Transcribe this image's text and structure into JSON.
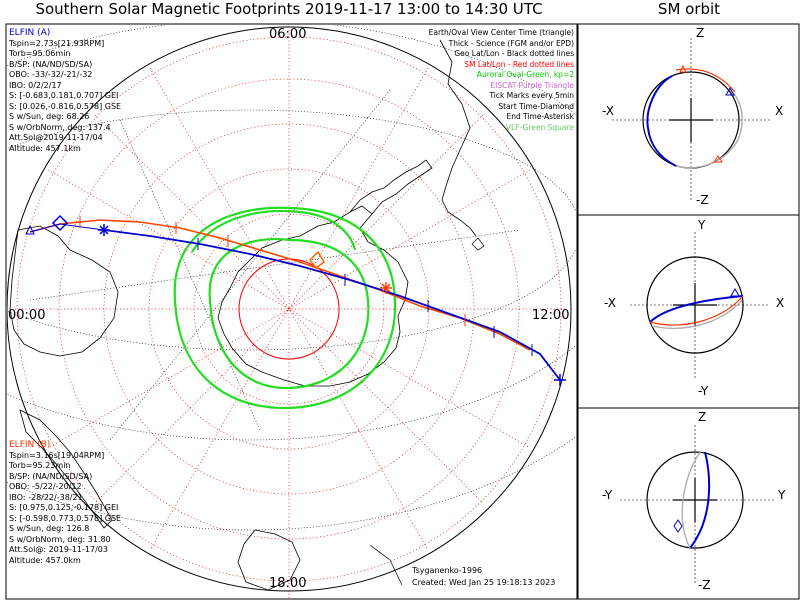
{
  "title": "Southern Solar Magnetic Footprints 2019-11-17 13:00 to 14:30 UTC",
  "orbit_title": "SM orbit",
  "clock_labels": {
    "top": "06:00",
    "left": "00:00",
    "right": "12:00",
    "bottom": "18:00"
  },
  "legend": [
    {
      "text": "Earth/Oval View Center Time (triangle)",
      "color": "#000000"
    },
    {
      "text": "Thick - Science (FGM and/or EPD)",
      "color": "#000000"
    },
    {
      "text": "Geo Lat/Lon - Black dotted lines",
      "color": "#000000"
    },
    {
      "text": "SM Lat/Lon - Red dotted lines",
      "color": "#ff0000"
    },
    {
      "text": "Auroral Oval-Green, kp=2",
      "color": "#00cc00"
    },
    {
      "text": "EISCAT-Purple Triangle",
      "color": "#cc66cc"
    },
    {
      "text": "Tick Marks every 5min",
      "color": "#000000"
    },
    {
      "text": "Start Time-Diamond",
      "color": "#000000"
    },
    {
      "text": "End Time-Asterisk",
      "color": "#000000"
    },
    {
      "text": "VLF-Green Square",
      "color": "#66cc66"
    }
  ],
  "elfin_a": {
    "name": "ELFIN (A)",
    "color": "#0000cc",
    "lines": [
      "Tspin=2.73s[21.93RPM]",
      "Torb=95.06min",
      "B/SP: (NA/ND/SD/SA)",
      "OBO: -33/-32/-21/-32",
      "IBO: 0/2/2/17",
      "S: [-0.683,0.181,0.707] GEI",
      "S: [0.026,-0.816,0.578] GSE",
      "S w/Sun, deg: 68.26",
      "S w/OrbNorm, deg: 137.4",
      "Att.Sol@2019-11-17/04",
      "Altitude: 457.1km"
    ]
  },
  "elfin_b": {
    "name": "ELFIN (B)",
    "color": "#ff3300",
    "lines": [
      "Tspin=3.16s[19.04RPM]",
      "Torb=95.23min",
      "B/SP: (NA/ND/SD/SA)",
      "OBO: -5/22/-20/12",
      "IBO: -28/22/-38/21",
      "S: [0.975,0.125,-0.178] GEI",
      "S: [-0.598,0.773,0.578] GSE",
      "S w/Sun, deg: 126.8",
      "S w/OrbNorm, deg: 31.80",
      "Att.Sol@: 2019-11-17/03",
      "Altitude: 457.0km"
    ]
  },
  "credit": "Tsyganenko-1996",
  "created": "Created: Wed Jan 25 19:18:13 2023",
  "orbit_panels": [
    {
      "top": "Z",
      "bottom": "-Z",
      "left": "-X",
      "right": "X"
    },
    {
      "top": "Y",
      "bottom": "-Y",
      "left": "-X",
      "right": "X"
    },
    {
      "top": "Z",
      "bottom": "-Z",
      "left": "-Y",
      "right": "Y"
    }
  ]
}
